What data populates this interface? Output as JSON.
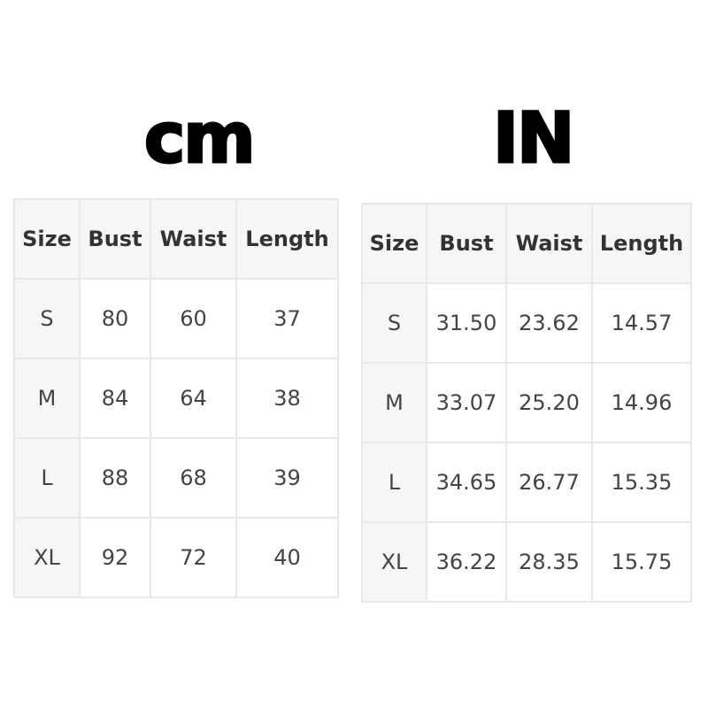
{
  "cm": {
    "title": "cm",
    "headers": [
      "Size",
      "Bust",
      "Waist",
      "Length"
    ],
    "rows": [
      [
        "S",
        "80",
        "60",
        "37"
      ],
      [
        "M",
        "84",
        "64",
        "38"
      ],
      [
        "L",
        "88",
        "68",
        "39"
      ],
      [
        "XL",
        "92",
        "72",
        "40"
      ]
    ]
  },
  "in": {
    "title": "IN",
    "headers": [
      "Size",
      "Bust",
      "Waist",
      "Length"
    ],
    "rows": [
      [
        "S",
        "31.50",
        "23.62",
        "14.57"
      ],
      [
        "M",
        "33.07",
        "25.20",
        "14.96"
      ],
      [
        "L",
        "34.65",
        "26.77",
        "15.35"
      ],
      [
        "XL",
        "36.22",
        "28.35",
        "15.75"
      ]
    ]
  }
}
